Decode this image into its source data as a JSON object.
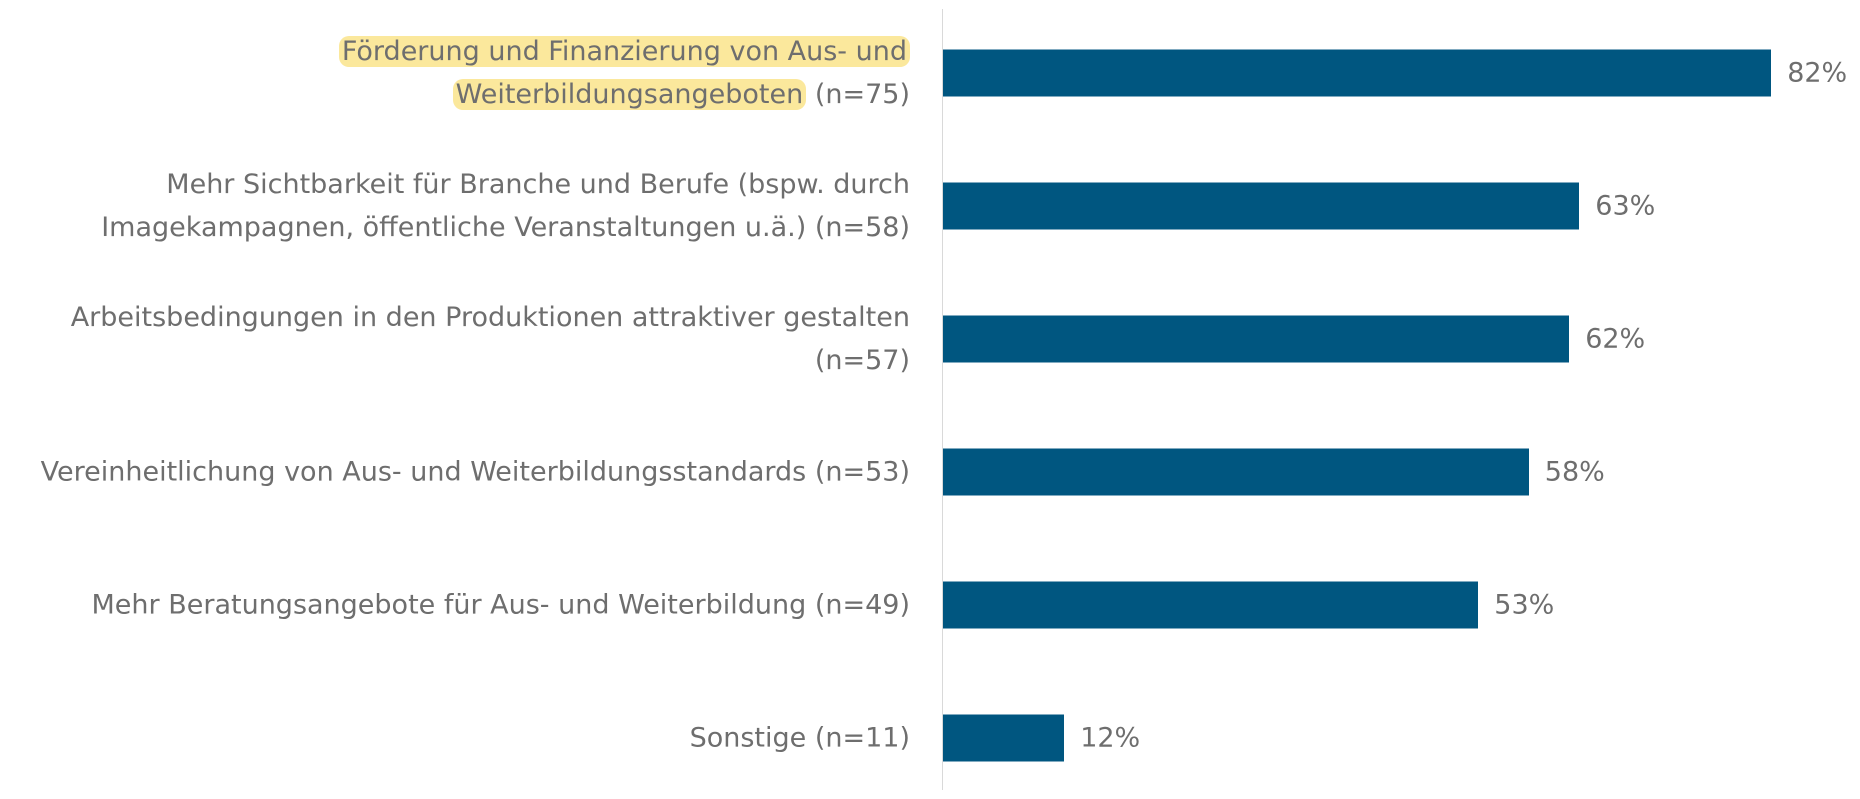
{
  "chart_data": {
    "type": "bar",
    "orientation": "horizontal",
    "categories": [
      [
        "Förderung und Finanzierung von Aus- und Weiterbildungsangeboten",
        "(n=75)"
      ],
      "Mehr Sichtbarkeit für Branche und Berufe (bspw. durch Imagekampagnen, öffentliche Veranstaltungen u.ä.) (n=58)",
      "Arbeitsbedingungen in den Produktionen attraktiver gestalten (n=57)",
      "Vereinheitlichung von Aus- und Weiterbildungsstandards (n=53)",
      "Mehr Beratungsangebote für Aus- und Weiterbildung (n=49)",
      "Sonstige (n=11)"
    ],
    "values": [
      82,
      63,
      62,
      58,
      53,
      12
    ],
    "value_labels": [
      "82%",
      "63%",
      "62%",
      "58%",
      "53%",
      "12%"
    ],
    "color": "#005680",
    "xlim": [
      0,
      100
    ],
    "highlight": {
      "category": 0,
      "part": 0,
      "color": "#fbe89c"
    }
  }
}
